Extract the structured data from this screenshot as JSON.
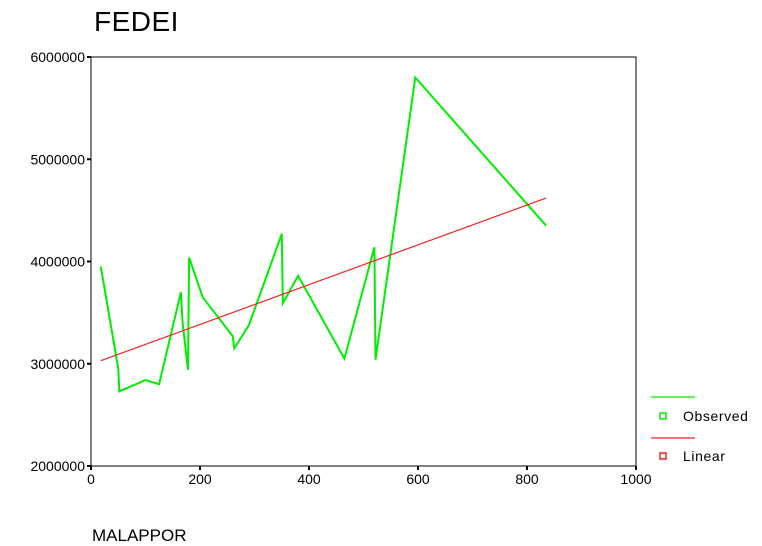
{
  "chart_data": {
    "type": "line",
    "title": "FEDEI",
    "xlabel": "MALAPPOR",
    "ylabel": "",
    "xlim": [
      0,
      1000
    ],
    "ylim": [
      2000000,
      6000000
    ],
    "x_ticks": [
      0,
      200,
      400,
      600,
      800,
      1000
    ],
    "x_tick_labels": [
      "0",
      "200",
      "400",
      "600",
      "800",
      "1000"
    ],
    "y_ticks": [
      2000000,
      3000000,
      4000000,
      5000000,
      6000000
    ],
    "y_tick_labels": [
      "2000000",
      "3000000",
      "4000000",
      "5000000",
      "6000000"
    ],
    "grid": false,
    "legend_position": "right",
    "series": [
      {
        "name": "Observed",
        "color": "#00ee00",
        "marker": "line",
        "x": [
          18,
          50,
          52,
          100,
          125,
          165,
          168,
          178,
          180,
          205,
          260,
          263,
          290,
          350,
          352,
          380,
          465,
          520,
          522,
          595,
          835
        ],
        "y": [
          3950000,
          2950000,
          2730000,
          2840000,
          2800000,
          3700000,
          3400000,
          2940000,
          4040000,
          3650000,
          3270000,
          3150000,
          3380000,
          4270000,
          3590000,
          3860000,
          3050000,
          4140000,
          3040000,
          5800000,
          4350000
        ]
      },
      {
        "name": "Linear",
        "color": "#ee2222",
        "marker": "line",
        "x": [
          18,
          835
        ],
        "y": [
          3030000,
          4620000
        ]
      }
    ]
  }
}
